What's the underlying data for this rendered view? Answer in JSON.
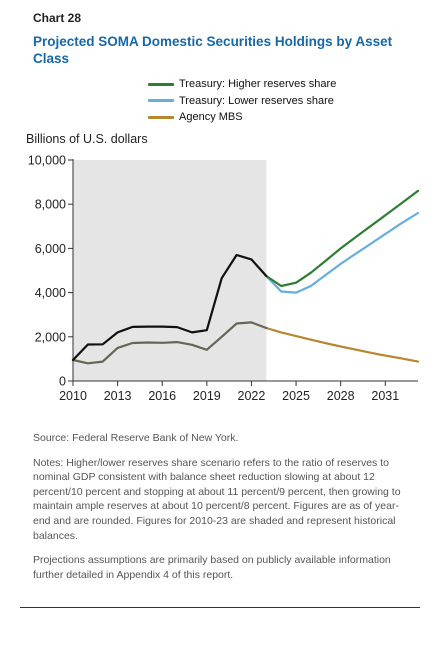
{
  "header": {
    "chart_number": "Chart 28",
    "title": "Projected SOMA Domestic Securities Holdings by Asset Class"
  },
  "chart_data": {
    "type": "line",
    "title": "Projected SOMA Domestic Securities Holdings by Asset Class",
    "ylabel": "Billions of U.S. dollars",
    "xlabel": "",
    "ylim": [
      0,
      10000
    ],
    "xlim": [
      2010,
      2033.2
    ],
    "y_ticks": [
      0,
      2000,
      4000,
      6000,
      8000,
      10000
    ],
    "y_tick_labels": [
      "0",
      "2,000",
      "4,000",
      "6,000",
      "8,000",
      "10,000"
    ],
    "x_ticks": [
      2010,
      2013,
      2016,
      2019,
      2022,
      2025,
      2028,
      2031
    ],
    "x_tick_labels": [
      "2010",
      "2013",
      "2016",
      "2019",
      "2022",
      "2025",
      "2028",
      "2031"
    ],
    "shaded_region": [
      2010,
      2023
    ],
    "shaded_color": "#e5e5e5",
    "grid": false,
    "legend_position": "top-center",
    "series": [
      {
        "name": "Treasury: Higher reserves share",
        "color": "#2e7d32",
        "x": [
          2023,
          2024,
          2025,
          2026,
          2027,
          2028,
          2029,
          2030,
          2031,
          2032,
          2033.2
        ],
        "values": [
          4750,
          4300,
          4450,
          4900,
          5450,
          6000,
          6500,
          7000,
          7500,
          8000,
          8600
        ]
      },
      {
        "name": "Treasury: Lower reserves share",
        "color": "#64aee0",
        "x": [
          2023,
          2024,
          2025,
          2026,
          2027,
          2028,
          2029,
          2030,
          2031,
          2032,
          2033.2
        ],
        "values": [
          4750,
          4050,
          4000,
          4300,
          4800,
          5300,
          5750,
          6200,
          6650,
          7100,
          7600
        ]
      },
      {
        "name": "Agency MBS",
        "color": "#b8862e",
        "x": [
          2023,
          2024,
          2025,
          2026,
          2027,
          2028,
          2029,
          2030,
          2031,
          2032,
          2033.2
        ],
        "values": [
          2400,
          2200,
          2030,
          1870,
          1710,
          1560,
          1420,
          1280,
          1150,
          1030,
          880
        ]
      },
      {
        "name": "",
        "color": "#111111",
        "x": [
          2010,
          2011,
          2012,
          2013,
          2014,
          2015,
          2016,
          2017,
          2018,
          2019,
          2020,
          2021,
          2022,
          2023
        ],
        "values": [
          950,
          1650,
          1660,
          2200,
          2450,
          2460,
          2460,
          2440,
          2200,
          2300,
          4650,
          5700,
          5500,
          4750
        ]
      },
      {
        "name": "",
        "color": "#666655",
        "x": [
          2010,
          2011,
          2012,
          2013,
          2014,
          2015,
          2016,
          2017,
          2018,
          2019,
          2020,
          2021,
          2022,
          2023
        ],
        "values": [
          950,
          800,
          880,
          1500,
          1720,
          1740,
          1730,
          1760,
          1640,
          1410,
          2000,
          2600,
          2650,
          2400
        ]
      }
    ]
  },
  "notes": {
    "source": "Source: Federal Reserve Bank of New York.",
    "notes_text": "Notes: Higher/lower reserves share scenario refers to the ratio of reserves to nominal GDP consistent with balance sheet reduction slowing at about 12 percent/10 percent and stopping at about 11 percent/9 percent, then growing to maintain ample reserves at about 10 percent/8 percent. Figures are as of year-end and are rounded. Figures for 2010-23 are shaded and represent historical balances.",
    "projections_text": "Projections assumptions are primarily based on publicly available information further detailed in Appendix 4 of this report."
  }
}
